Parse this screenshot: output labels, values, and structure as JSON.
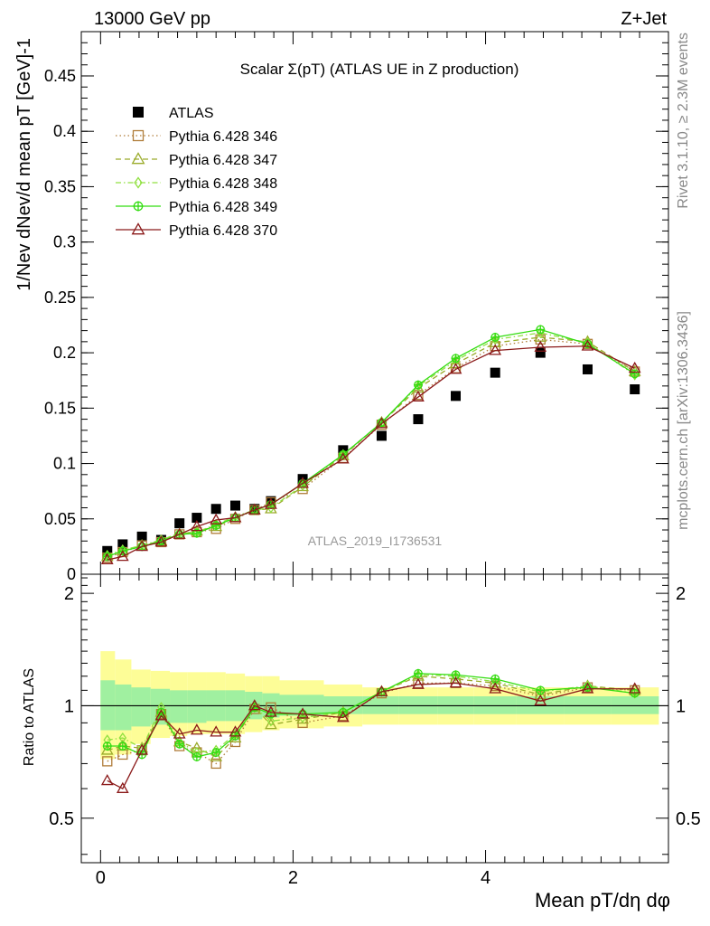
{
  "header": {
    "left": "13000 GeV pp",
    "right": "Z+Jet"
  },
  "side_labels": {
    "rivet": "Rivet 3.1.10, ≥ 2.3M events",
    "mcplots": "mcplots.cern.ch [arXiv:1306.3436]"
  },
  "chart_data": [
    {
      "type": "scatter",
      "panel": "main",
      "title": "Scalar Σ(pT) (ATLAS UE in Z production)",
      "ylabel": "1/Nev dNev/d mean pT [GeV]-1",
      "watermark": "ATLAS_2019_I1736531",
      "xlim": [
        -0.2,
        5.9
      ],
      "ylim": [
        0,
        0.49
      ],
      "yticks": [
        "0",
        "0.05",
        "0.1",
        "0.15",
        "0.2",
        "0.25",
        "0.3",
        "0.35",
        "0.4",
        "0.45"
      ],
      "ytick_values": [
        0,
        0.05,
        0.1,
        0.15,
        0.2,
        0.25,
        0.3,
        0.35,
        0.4,
        0.45
      ],
      "legend_position": "top-left",
      "x": [
        0.07,
        0.23,
        0.43,
        0.63,
        0.82,
        1.0,
        1.2,
        1.4,
        1.6,
        1.77,
        2.1,
        2.52,
        2.92,
        3.3,
        3.69,
        4.1,
        4.57,
        5.06,
        5.55
      ],
      "series": [
        {
          "name": "ATLAS",
          "marker": "filled-square",
          "line": "none",
          "color": "#000000",
          "values": [
            0.021,
            0.027,
            0.034,
            0.031,
            0.046,
            0.051,
            0.059,
            0.062,
            0.059,
            0.066,
            0.086,
            0.112,
            0.125,
            0.14,
            0.161,
            0.182,
            0.2,
            0.185,
            0.167
          ]
        },
        {
          "name": "Pythia 6.428 346",
          "marker": "open-square",
          "line": "dotted",
          "color": "#b07d3a",
          "values": [
            0.015,
            0.02,
            0.026,
            0.029,
            0.036,
            0.038,
            0.041,
            0.05,
            0.058,
            0.065,
            0.077,
            0.105,
            0.135,
            0.162,
            0.186,
            0.206,
            0.212,
            0.208,
            0.183
          ]
        },
        {
          "name": "Pythia 6.428 347",
          "marker": "open-triangle",
          "line": "dashed",
          "color": "#9aab2a",
          "values": [
            0.016,
            0.021,
            0.026,
            0.03,
            0.036,
            0.039,
            0.043,
            0.051,
            0.058,
            0.059,
            0.079,
            0.107,
            0.137,
            0.168,
            0.19,
            0.209,
            0.214,
            0.21,
            0.183
          ]
        },
        {
          "name": "Pythia 6.428 348",
          "marker": "open-diamond",
          "line": "dash-dot",
          "color": "#90e040",
          "values": [
            0.017,
            0.022,
            0.026,
            0.031,
            0.037,
            0.038,
            0.045,
            0.052,
            0.058,
            0.06,
            0.08,
            0.108,
            0.137,
            0.17,
            0.193,
            0.212,
            0.218,
            0.209,
            0.18
          ]
        },
        {
          "name": "Pythia 6.428 349",
          "marker": "open-circle-cross",
          "line": "solid",
          "color": "#33dd11",
          "values": [
            0.016,
            0.021,
            0.025,
            0.03,
            0.036,
            0.037,
            0.044,
            0.051,
            0.058,
            0.063,
            0.082,
            0.108,
            0.137,
            0.171,
            0.195,
            0.214,
            0.221,
            0.208,
            0.181
          ]
        },
        {
          "name": "Pythia 6.428 370",
          "marker": "open-triangle",
          "line": "solid",
          "color": "#8b1a1a",
          "values": [
            0.013,
            0.016,
            0.025,
            0.029,
            0.036,
            0.043,
            0.049,
            0.051,
            0.058,
            0.063,
            0.082,
            0.104,
            0.136,
            0.16,
            0.185,
            0.202,
            0.205,
            0.206,
            0.186
          ]
        }
      ]
    },
    {
      "type": "line",
      "panel": "ratio",
      "ylabel": "Ratio to ATLAS",
      "xlabel": "Mean pT/dη dφ",
      "xlim": [
        -0.2,
        5.9
      ],
      "ylim": [
        0.38,
        2.25
      ],
      "yticks": [
        "0.5",
        "1",
        "2"
      ],
      "ytick_values": [
        0.5,
        1,
        2
      ],
      "xticks": [
        "0",
        "2",
        "4"
      ],
      "xtick_values": [
        0,
        2,
        4
      ],
      "reference_line": 1,
      "band_x_edges": [
        0,
        0.15,
        0.32,
        0.52,
        0.72,
        0.9,
        1.1,
        1.3,
        1.5,
        1.68,
        1.86,
        2.32,
        2.72,
        3.1,
        3.5,
        3.88,
        4.32,
        4.82,
        5.3,
        5.8
      ],
      "band_outer_low": [
        0.72,
        0.74,
        0.79,
        0.82,
        0.83,
        0.84,
        0.84,
        0.84,
        0.85,
        0.86,
        0.87,
        0.88,
        0.89,
        0.89,
        0.89,
        0.89,
        0.89,
        0.89,
        0.89
      ],
      "band_outer_high": [
        1.4,
        1.33,
        1.25,
        1.24,
        1.23,
        1.23,
        1.23,
        1.22,
        1.2,
        1.2,
        1.17,
        1.14,
        1.12,
        1.12,
        1.12,
        1.12,
        1.12,
        1.12,
        1.12
      ],
      "band_inner_low": [
        0.86,
        0.86,
        0.88,
        0.89,
        0.9,
        0.9,
        0.91,
        0.91,
        0.92,
        0.93,
        0.94,
        0.95,
        0.95,
        0.95,
        0.95,
        0.95,
        0.95,
        0.95,
        0.95
      ],
      "band_inner_high": [
        1.17,
        1.14,
        1.12,
        1.11,
        1.1,
        1.1,
        1.1,
        1.1,
        1.09,
        1.08,
        1.07,
        1.06,
        1.06,
        1.06,
        1.06,
        1.06,
        1.06,
        1.06,
        1.06
      ],
      "band_colors": {
        "outer": "#fdfd97",
        "inner": "#a0f0a0"
      },
      "x": [
        0.07,
        0.23,
        0.43,
        0.63,
        0.82,
        1.0,
        1.2,
        1.4,
        1.6,
        1.77,
        2.1,
        2.52,
        2.92,
        3.3,
        3.69,
        4.1,
        4.57,
        5.06,
        5.55
      ],
      "series": [
        {
          "name": "Pythia 6.428 346",
          "color": "#b07d3a",
          "line": "dotted",
          "marker": "open-square",
          "values": [
            0.71,
            0.74,
            0.76,
            0.95,
            0.78,
            0.75,
            0.7,
            0.8,
            0.98,
            0.99,
            0.9,
            0.94,
            1.08,
            1.15,
            1.15,
            1.13,
            1.06,
            1.12,
            1.1
          ]
        },
        {
          "name": "Pythia 6.428 347",
          "color": "#9aab2a",
          "line": "dashed",
          "marker": "open-triangle",
          "values": [
            0.76,
            0.78,
            0.77,
            0.96,
            0.8,
            0.77,
            0.73,
            0.82,
            0.99,
            0.89,
            0.92,
            0.96,
            1.09,
            1.2,
            1.18,
            1.15,
            1.07,
            1.13,
            1.1
          ]
        },
        {
          "name": "Pythia 6.428 348",
          "color": "#90e040",
          "line": "dash-dot",
          "marker": "open-diamond",
          "values": [
            0.81,
            0.82,
            0.77,
            0.99,
            0.8,
            0.75,
            0.76,
            0.84,
            0.99,
            0.91,
            0.93,
            0.96,
            1.09,
            1.21,
            1.2,
            1.16,
            1.09,
            1.13,
            1.08
          ]
        },
        {
          "name": "Pythia 6.428 349",
          "color": "#33dd11",
          "line": "solid",
          "marker": "open-circle-cross",
          "values": [
            0.78,
            0.78,
            0.74,
            0.96,
            0.79,
            0.73,
            0.75,
            0.83,
            0.99,
            0.95,
            0.95,
            0.96,
            1.09,
            1.22,
            1.21,
            1.18,
            1.1,
            1.12,
            1.08
          ]
        },
        {
          "name": "Pythia 6.428 370",
          "color": "#8b1a1a",
          "line": "solid",
          "marker": "open-triangle",
          "values": [
            0.63,
            0.6,
            0.76,
            0.94,
            0.84,
            0.86,
            0.85,
            0.85,
            1.0,
            0.96,
            0.95,
            0.93,
            1.09,
            1.14,
            1.15,
            1.11,
            1.03,
            1.11,
            1.11
          ]
        }
      ]
    }
  ]
}
